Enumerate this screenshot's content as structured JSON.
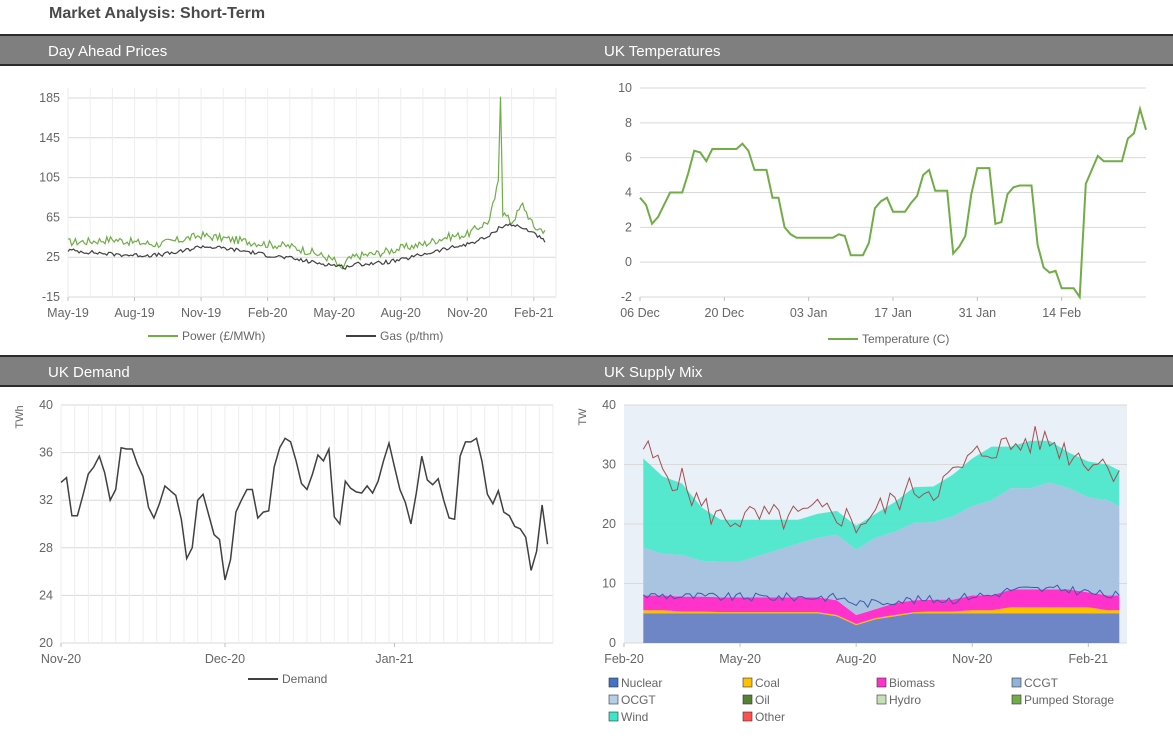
{
  "page": {
    "title": "Market Analysis: Short-Term"
  },
  "bands": {
    "top_left": "Day Ahead Prices",
    "top_right": "UK Temperatures",
    "bottom_left": "UK Demand",
    "bottom_right": "UK Supply Mix"
  },
  "colors": {
    "green": "#70ad47",
    "dark": "#404040",
    "grid": "#d9d9d9",
    "nuclear": "#6f86c6",
    "coal": "#ffc000",
    "biomass": "#ff33cc",
    "ccgt": "#9dc3e6",
    "ocgt": "#b4d0e8",
    "oil": "#548235",
    "hydro": "#c5e0b4",
    "pumped": "#70ad47",
    "wind": "#3ce6c8",
    "other": "#ff5050",
    "top_line": "#a05050"
  },
  "chart_data": [
    {
      "id": "prices",
      "type": "line",
      "title": "Day Ahead Prices",
      "ylim": [
        -15,
        195
      ],
      "yticks": [
        "-15",
        "25",
        "65",
        "105",
        "145",
        "185"
      ],
      "xlim": [
        0,
        22
      ],
      "xticks": [
        {
          "label": "May-19",
          "x": 0
        },
        {
          "label": "Aug-19",
          "x": 3
        },
        {
          "label": "Nov-19",
          "x": 6
        },
        {
          "label": "Feb-20",
          "x": 9
        },
        {
          "label": "May-20",
          "x": 12
        },
        {
          "label": "Aug-20",
          "x": 15
        },
        {
          "label": "Nov-20",
          "x": 18
        },
        {
          "label": "Feb-21",
          "x": 21
        }
      ],
      "series": [
        {
          "name": "Power (£/MWh)",
          "color": "#70ad47",
          "points": [
            [
              0,
              40
            ],
            [
              1,
              41
            ],
            [
              2,
              43
            ],
            [
              3,
              40
            ],
            [
              4,
              38
            ],
            [
              5,
              42
            ],
            [
              6,
              47
            ],
            [
              7,
              44
            ],
            [
              8,
              41
            ],
            [
              9,
              38
            ],
            [
              10,
              36
            ],
            [
              11,
              30
            ],
            [
              12,
              22
            ],
            [
              12.3,
              12
            ],
            [
              12.6,
              22
            ],
            [
              13,
              26
            ],
            [
              14,
              29
            ],
            [
              15,
              34
            ],
            [
              16,
              38
            ],
            [
              17,
              45
            ],
            [
              18,
              48
            ],
            [
              19,
              62
            ],
            [
              19.4,
              100
            ],
            [
              19.5,
              190
            ],
            [
              19.6,
              70
            ],
            [
              20,
              60
            ],
            [
              20.5,
              78
            ],
            [
              21,
              55
            ],
            [
              21.5,
              52
            ]
          ]
        },
        {
          "name": "Gas (p/thm)",
          "color": "#404040",
          "points": [
            [
              0,
              32
            ],
            [
              1,
              30
            ],
            [
              2,
              28
            ],
            [
              3,
              27
            ],
            [
              4,
              27
            ],
            [
              5,
              30
            ],
            [
              6,
              36
            ],
            [
              7,
              34
            ],
            [
              8,
              31
            ],
            [
              9,
              27
            ],
            [
              10,
              24
            ],
            [
              11,
              20
            ],
            [
              12,
              17
            ],
            [
              12.5,
              15
            ],
            [
              13,
              18
            ],
            [
              14,
              19
            ],
            [
              15,
              22
            ],
            [
              16,
              28
            ],
            [
              17,
              33
            ],
            [
              18,
              38
            ],
            [
              19,
              46
            ],
            [
              19.5,
              56
            ],
            [
              20,
              58
            ],
            [
              21,
              50
            ],
            [
              21.5,
              40
            ]
          ]
        }
      ]
    },
    {
      "id": "temps",
      "type": "line",
      "title": "UK Temperatures",
      "ylim": [
        -2,
        10
      ],
      "yticks": [
        "-2",
        "0",
        "2",
        "4",
        "6",
        "8",
        "10"
      ],
      "xlim": [
        0,
        84
      ],
      "xticks": [
        {
          "label": "06 Dec",
          "x": 0
        },
        {
          "label": "20 Dec",
          "x": 14
        },
        {
          "label": "03 Jan",
          "x": 28
        },
        {
          "label": "17 Jan",
          "x": 42
        },
        {
          "label": "31 Jan",
          "x": 56
        },
        {
          "label": "14 Feb",
          "x": 70
        }
      ],
      "series": [
        {
          "name": "Temperature (C)",
          "color": "#70ad47",
          "values": [
            3.7,
            3.3,
            2.2,
            2.6,
            3.3,
            4.0,
            4.0,
            4.0,
            5.1,
            6.4,
            6.3,
            5.8,
            6.5,
            6.5,
            6.5,
            6.5,
            6.5,
            6.8,
            6.4,
            5.3,
            5.3,
            5.3,
            3.7,
            3.7,
            2.0,
            1.6,
            1.4,
            1.4,
            1.4,
            1.4,
            1.4,
            1.4,
            1.4,
            1.6,
            1.5,
            0.4,
            0.4,
            0.4,
            1.1,
            3.1,
            3.5,
            3.7,
            2.9,
            2.9,
            2.9,
            3.4,
            3.8,
            5.0,
            5.3,
            4.1,
            4.1,
            4.1,
            0.5,
            0.9,
            1.5,
            3.9,
            5.4,
            5.4,
            5.4,
            2.2,
            2.3,
            3.9,
            4.3,
            4.4,
            4.4,
            4.4,
            1.0,
            -0.3,
            -0.6,
            -0.5,
            -1.5,
            -1.5,
            -1.5,
            -2.0,
            4.5,
            5.3,
            6.1,
            5.8,
            5.8,
            5.8,
            5.8,
            7.1,
            7.4,
            8.8,
            7.6
          ]
        }
      ]
    },
    {
      "id": "demand",
      "type": "line",
      "title": "UK Demand",
      "ylabel": "TWh",
      "ylim": [
        20,
        40
      ],
      "yticks": [
        "20",
        "24",
        "28",
        "32",
        "36",
        "40"
      ],
      "xlim": [
        0,
        90
      ],
      "xticks": [
        {
          "label": "Nov-20",
          "x": 0
        },
        {
          "label": "Dec-20",
          "x": 30
        },
        {
          "label": "Jan-21",
          "x": 61
        }
      ],
      "series": [
        {
          "name": "Demand",
          "color": "#404040",
          "values": [
            33.5,
            33.9,
            30.7,
            30.7,
            32.4,
            34.2,
            34.8,
            35.7,
            34.3,
            32.0,
            32.9,
            36.4,
            36.3,
            36.3,
            35.0,
            34.0,
            31.4,
            30.5,
            31.7,
            33.2,
            32.8,
            32.4,
            30.4,
            27.1,
            28.0,
            32.0,
            32.5,
            30.8,
            29.1,
            28.7,
            25.3,
            27.0,
            31.0,
            32.0,
            32.9,
            32.9,
            30.5,
            31.0,
            31.1,
            34.8,
            36.4,
            37.2,
            36.9,
            35.3,
            33.4,
            32.9,
            34.2,
            35.8,
            35.3,
            36.3,
            30.6,
            30.0,
            33.6,
            33.0,
            32.7,
            32.6,
            33.2,
            32.6,
            33.6,
            35.3,
            36.8,
            34.8,
            32.9,
            31.8,
            30.0,
            32.6,
            35.7,
            33.7,
            33.3,
            33.8,
            32.0,
            30.5,
            30.4,
            35.7,
            36.9,
            36.9,
            37.2,
            35.3,
            32.5,
            31.7,
            32.8,
            31.0,
            30.7,
            29.8,
            29.6,
            28.9,
            26.1,
            27.7,
            31.6,
            28.3
          ]
        }
      ]
    },
    {
      "id": "supply",
      "type": "area",
      "title": "UK Supply Mix",
      "ylabel": "TW",
      "ylim": [
        0,
        40
      ],
      "yticks": [
        "0",
        "10",
        "20",
        "30",
        "40"
      ],
      "xlim": [
        0,
        13
      ],
      "xticks": [
        {
          "label": "Feb-20",
          "x": 0
        },
        {
          "label": "May-20",
          "x": 3
        },
        {
          "label": "Aug-20",
          "x": 6
        },
        {
          "label": "Nov-20",
          "x": 9
        },
        {
          "label": "Feb-21",
          "x": 12
        }
      ],
      "legend": [
        {
          "name": "Nuclear",
          "color": "#4472c4"
        },
        {
          "name": "Coal",
          "color": "#ffc000"
        },
        {
          "name": "Biomass",
          "color": "#ff33cc"
        },
        {
          "name": "CCGT",
          "color": "#8fb3d9"
        },
        {
          "name": "OCGT",
          "color": "#b4d0e8"
        },
        {
          "name": "Oil",
          "color": "#548235"
        },
        {
          "name": "Hydro",
          "color": "#c5e0b4"
        },
        {
          "name": "Pumped Storage",
          "color": "#70ad47"
        },
        {
          "name": "Wind",
          "color": "#3ce6c8"
        },
        {
          "name": "Other",
          "color": "#ff5050"
        }
      ],
      "x": [
        0.5,
        1,
        1.5,
        2,
        2.5,
        3,
        3.5,
        4,
        4.5,
        5,
        5.5,
        6,
        6.5,
        7,
        7.5,
        8,
        8.5,
        9,
        9.5,
        10,
        10.5,
        11,
        11.5,
        12,
        12.5,
        12.8
      ],
      "series": [
        {
          "name": "Nuclear",
          "values": [
            5,
            5,
            5,
            5,
            5,
            5,
            5,
            5,
            5,
            5,
            4.5,
            3,
            4,
            4.5,
            5,
            5,
            5,
            5,
            5,
            5,
            5,
            5,
            5,
            5,
            5,
            5
          ]
        },
        {
          "name": "Coal",
          "values": [
            0.5,
            0.5,
            0.3,
            0.3,
            0.2,
            0.2,
            0.2,
            0.2,
            0.2,
            0.2,
            0.2,
            0.2,
            0.2,
            0.2,
            0.2,
            0.3,
            0.3,
            0.5,
            0.5,
            1,
            1,
            1,
            1,
            1,
            0.5,
            0.5
          ]
        },
        {
          "name": "Biomass",
          "values": [
            2.5,
            2.5,
            2.5,
            2.5,
            2.5,
            2.5,
            2.5,
            2.5,
            2.5,
            2.5,
            2.5,
            1.5,
            1.5,
            2,
            2,
            2,
            2,
            2.5,
            2.5,
            3,
            3,
            3,
            3,
            2.5,
            2.5,
            2.5
          ]
        },
        {
          "name": "CCGT",
          "values": [
            8,
            7,
            7,
            6,
            6,
            6,
            7,
            8,
            9,
            10,
            11,
            11,
            12,
            12,
            13,
            13,
            14,
            15,
            16,
            17,
            17,
            18,
            17,
            16,
            16,
            15
          ]
        },
        {
          "name": "Wind",
          "values": [
            15,
            13,
            12,
            9,
            7,
            7,
            6,
            5,
            4,
            4,
            4,
            4,
            4,
            5,
            6,
            6,
            7,
            8,
            9,
            7,
            8,
            7,
            6,
            6,
            6,
            6
          ]
        }
      ],
      "envelope": [
        33,
        29,
        27,
        23,
        21,
        21,
        21,
        21,
        21,
        22,
        22,
        20,
        22,
        24,
        26,
        26,
        28,
        31,
        33,
        33,
        34,
        34,
        32,
        31,
        30,
        29
      ]
    }
  ],
  "legends": {
    "prices": [
      "Power (£/MWh)",
      "Gas (p/thm)"
    ],
    "temps": [
      "Temperature (C)"
    ],
    "demand": [
      "Demand"
    ]
  }
}
